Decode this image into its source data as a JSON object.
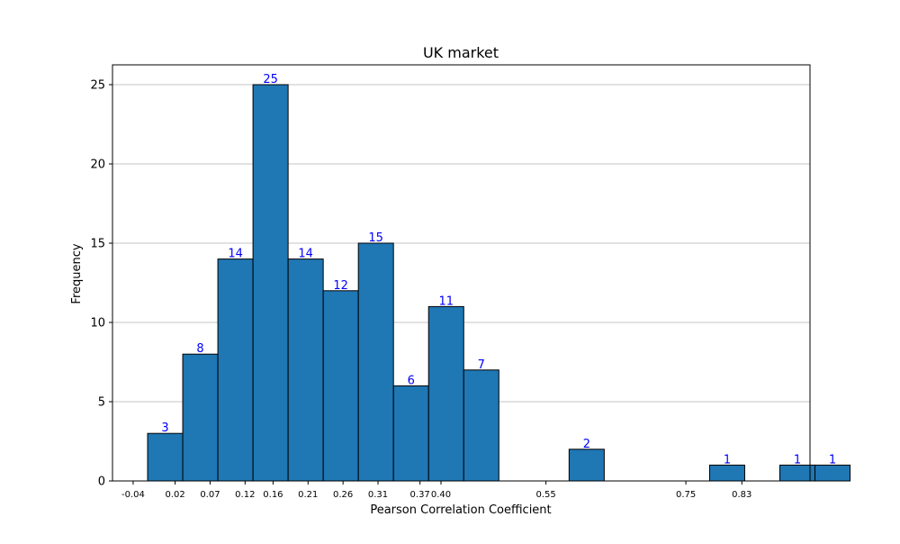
{
  "chart_data": {
    "type": "bar",
    "title": "UK market",
    "xlabel": "Pearson Correlation Coefficient",
    "ylabel": "Frequency",
    "ylim": [
      0,
      26.25
    ],
    "xlim": [
      -0.0695,
      0.9274
    ],
    "yticks": [
      0,
      5,
      10,
      15,
      20,
      25
    ],
    "xtick_labels": [
      "-0.04",
      "0.02",
      "0.07",
      "0.12",
      "0.16",
      "0.21",
      "0.26",
      "0.31",
      "0.37",
      "0.40",
      "0.55",
      "0.75",
      "0.83"
    ],
    "xtick_values": [
      -0.04,
      0.02,
      0.07,
      0.12,
      0.16,
      0.21,
      0.26,
      0.31,
      0.37,
      0.4,
      0.55,
      0.75,
      0.83
    ],
    "bin_width": 0.0502,
    "bin_starts": [
      -0.0193,
      0.0309,
      0.0811,
      0.1313,
      0.1815,
      0.2317,
      0.2819,
      0.3321,
      0.3823,
      0.4325,
      0.5831,
      0.7839,
      0.8843,
      0.9345
    ],
    "values": [
      3,
      8,
      14,
      25,
      14,
      12,
      15,
      6,
      11,
      7,
      2,
      1,
      1,
      1
    ],
    "grid": "y",
    "bar_color": "#1f77b4",
    "label_color": "#0000ff"
  }
}
